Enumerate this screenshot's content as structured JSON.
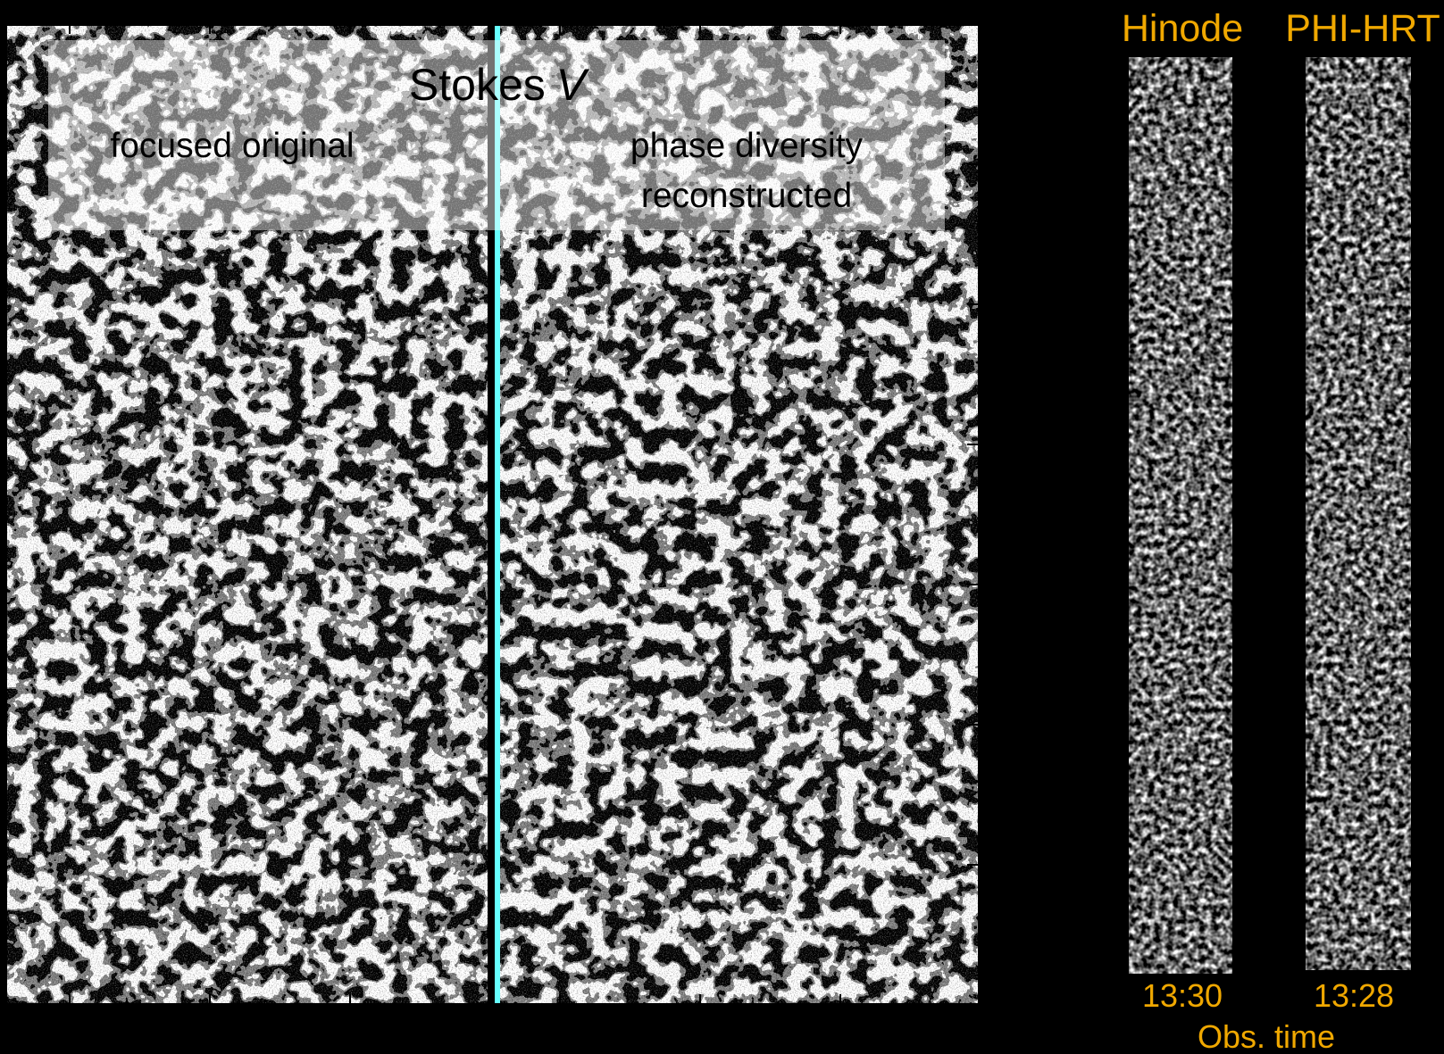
{
  "title": {
    "text": "Stokes",
    "variable": "V"
  },
  "panels": [
    {
      "label_lines": [
        "focused original"
      ]
    },
    {
      "label_lines": [
        "phase diversity",
        "reconstructed"
      ]
    }
  ],
  "strips": [
    {
      "name": "Hinode",
      "time": "13:30"
    },
    {
      "name": "PHI-HRT",
      "time": "13:28"
    }
  ],
  "axis_label": "Obs. time"
}
